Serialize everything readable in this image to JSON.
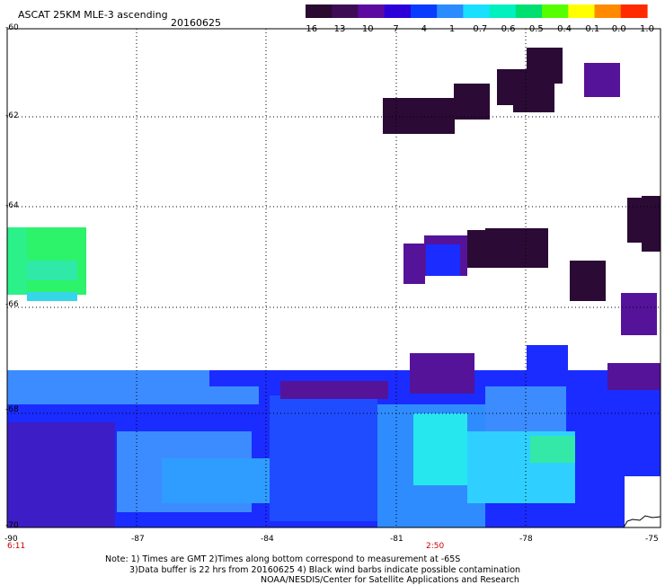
{
  "title": "ASCAT 25KM MLE-3 ascending",
  "date": "20160625",
  "colorbar": {
    "labels": [
      "-16",
      "-13",
      "-10",
      "-7",
      "-4",
      "-1",
      "-0.7",
      "-0.6",
      "-0.5",
      "-0.4",
      "-0.1",
      "0.0",
      "1.0"
    ],
    "colors": [
      "#2a0a30",
      "#3e0c55",
      "#5b0b9f",
      "#2c00d9",
      "#0a3cff",
      "#2a8cff",
      "#19e0ff",
      "#00f0c0",
      "#00e070",
      "#55ff00",
      "#ffff00",
      "#ff8a00",
      "#ff2a00"
    ]
  },
  "lat_labels": [
    "-60",
    "-62",
    "-64",
    "-66",
    "-68",
    "-70"
  ],
  "lon_labels": [
    "-90",
    "-87",
    "-84",
    "-81",
    "-78",
    "-75"
  ],
  "times": [
    "6:11",
    "2:50"
  ],
  "notes": {
    "line1": "Note: 1) Times are GMT 2)Times along bottom correspond to measurement at -65S",
    "line2": "3)Data buffer is 22 hrs from 20160625 4) Black wind barbs indicate possible contamination",
    "line3": "NOAA/NESDIS/Center for Satellite Applications and Research"
  },
  "colors": {
    "dark_purple": "#2b0a35",
    "purple": "#55139a",
    "blue": "#1a2cff",
    "light_blue": "#3c8cff",
    "cyan": "#26e6ee",
    "green": "#2cf36a"
  }
}
